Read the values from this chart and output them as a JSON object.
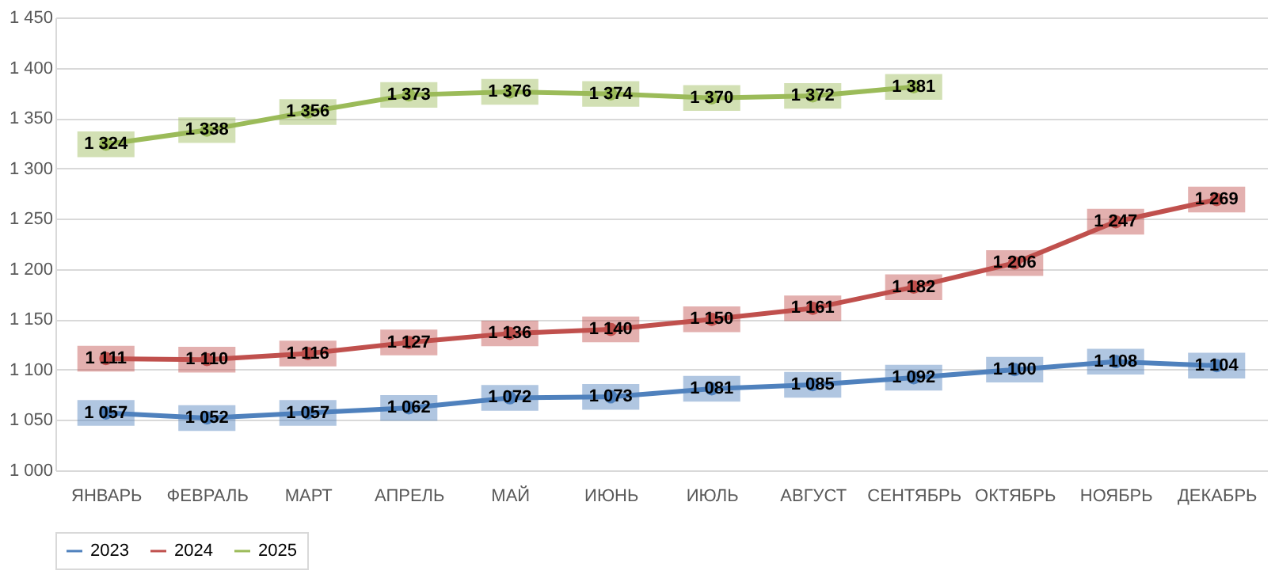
{
  "chart_data": {
    "type": "line",
    "categories": [
      "ЯНВАРЬ",
      "ФЕВРАЛЬ",
      "МАРТ",
      "АПРЕЛЬ",
      "МАЙ",
      "ИЮНЬ",
      "ИЮЛЬ",
      "АВГУСТ",
      "СЕНТЯБРЬ",
      "ОКТЯБРЬ",
      "НОЯБРЬ",
      "ДЕКАБРЬ"
    ],
    "series": [
      {
        "name": "2023",
        "color": "#4f81bd",
        "values": [
          1057,
          1052,
          1057,
          1062,
          1072,
          1073,
          1081,
          1085,
          1092,
          1100,
          1108,
          1104
        ],
        "value_labels": [
          "1 057",
          "1 052",
          "1 057",
          "1 062",
          "1 072",
          "1 073",
          "1 081",
          "1 085",
          "1 092",
          "1 100",
          "1 108",
          "1 104"
        ]
      },
      {
        "name": "2024",
        "color": "#c0504d",
        "values": [
          1111,
          1110,
          1116,
          1127,
          1136,
          1140,
          1150,
          1161,
          1182,
          1206,
          1247,
          1269
        ],
        "value_labels": [
          "1 111",
          "1 110",
          "1 116",
          "1 127",
          "1 136",
          "1 140",
          "1 150",
          "1 161",
          "1 182",
          "1 206",
          "1 247",
          "1 269"
        ]
      },
      {
        "name": "2025",
        "color": "#9bbb59",
        "values": [
          1324,
          1338,
          1356,
          1373,
          1376,
          1374,
          1370,
          1372,
          1381,
          null,
          null,
          null
        ],
        "value_labels": [
          "1 324",
          "1 338",
          "1 356",
          "1 373",
          "1 376",
          "1 374",
          "1 370",
          "1 372",
          "1 381",
          null,
          null,
          null
        ]
      }
    ],
    "ylim": [
      1000,
      1450
    ],
    "yticks": [
      {
        "value": 1000,
        "label": "1 000"
      },
      {
        "value": 1050,
        "label": "1 050"
      },
      {
        "value": 1100,
        "label": "1 100"
      },
      {
        "value": 1150,
        "label": "1 150"
      },
      {
        "value": 1200,
        "label": "1 200"
      },
      {
        "value": 1250,
        "label": "1 250"
      },
      {
        "value": 1300,
        "label": "1 300"
      },
      {
        "value": 1350,
        "label": "1 350"
      },
      {
        "value": 1400,
        "label": "1 400"
      },
      {
        "value": 1450,
        "label": "1 450"
      }
    ],
    "grid": "y",
    "legend": "bottom",
    "marker": "circle",
    "line_style": "solid"
  }
}
